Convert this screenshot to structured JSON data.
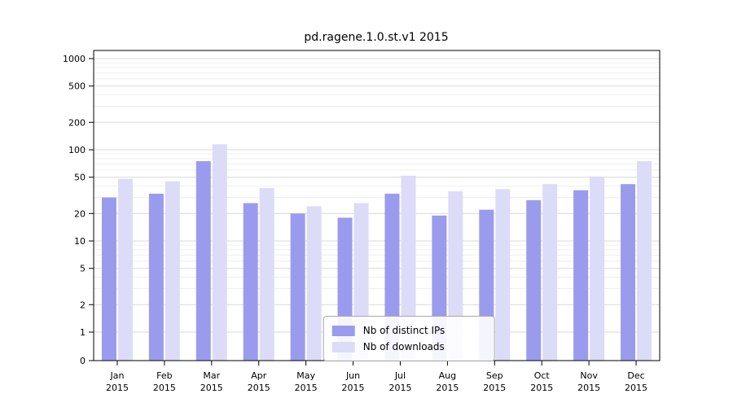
{
  "title": "pd.ragene.1.0.st.v1 2015",
  "chart_data": {
    "type": "bar",
    "scale": "symlog",
    "grid": true,
    "legend_position": "lower center",
    "year": "2015",
    "categories": [
      "Jan",
      "Feb",
      "Mar",
      "Apr",
      "May",
      "Jun",
      "Jul",
      "Aug",
      "Sep",
      "Oct",
      "Nov",
      "Dec"
    ],
    "yticks": [
      0,
      1,
      2,
      5,
      10,
      20,
      50,
      100,
      200,
      500,
      1000
    ],
    "ylim": [
      0,
      1000
    ],
    "xlabel": "",
    "ylabel": "",
    "series": [
      {
        "name": "Nb of distinct IPs",
        "color": "#9b9bee",
        "values": [
          30,
          33,
          75,
          26,
          20,
          18,
          33,
          19,
          22,
          28,
          36,
          42
        ]
      },
      {
        "name": "Nb of downloads",
        "color": "#dcdcf8",
        "values": [
          48,
          45,
          115,
          38,
          24,
          26,
          52,
          35,
          37,
          42,
          51,
          75
        ]
      }
    ],
    "colors": {
      "major_grid": "#d9d9d9",
      "minor_grid": "#efefef",
      "axis": "#000000"
    }
  }
}
